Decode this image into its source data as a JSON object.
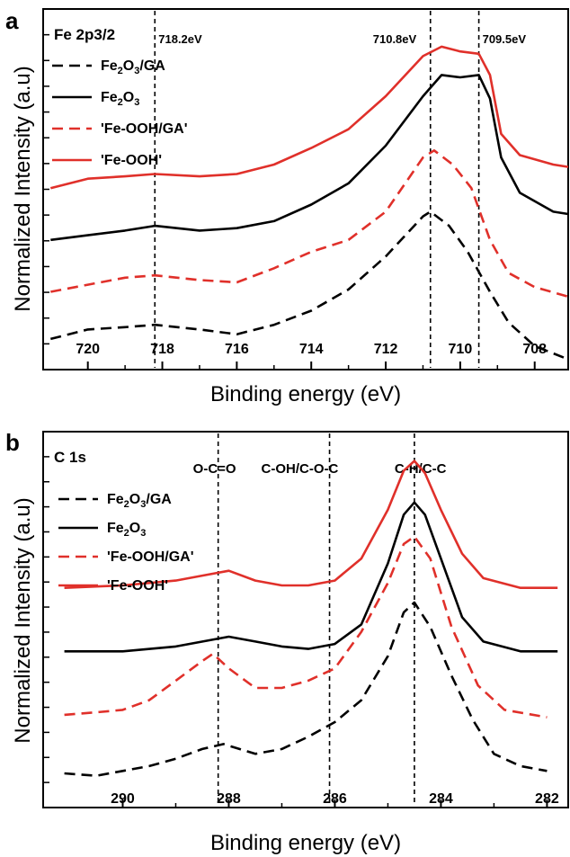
{
  "chart_data": [
    {
      "type": "line",
      "panel": "a",
      "title": "Fe 2p3/2",
      "xlabel": "Binding energy (eV)",
      "ylabel": "Normalized Intensity (a.u)",
      "xlim": [
        721.2,
        707.1
      ],
      "xticks": [
        720,
        718,
        716,
        714,
        712,
        710,
        708
      ],
      "x_reversed": true,
      "reference_lines": [
        {
          "x": 718.2,
          "label": "718.2eV"
        },
        {
          "x": 710.8,
          "label": "710.8eV"
        },
        {
          "x": 709.5,
          "label": "709.5eV"
        }
      ],
      "series": [
        {
          "name": "Fe2O3/GA",
          "color": "#000000",
          "dash": "dashed",
          "points": [
            [
              721.0,
              -0.02
            ],
            [
              720.0,
              0.02
            ],
            [
              719.0,
              0.03
            ],
            [
              718.2,
              0.04
            ],
            [
              717.0,
              0.02
            ],
            [
              716.0,
              0.0
            ],
            [
              715.0,
              0.04
            ],
            [
              714.0,
              0.1
            ],
            [
              713.0,
              0.19
            ],
            [
              712.0,
              0.33
            ],
            [
              711.0,
              0.5
            ],
            [
              710.8,
              0.52
            ],
            [
              710.3,
              0.46
            ],
            [
              709.8,
              0.35
            ],
            [
              709.2,
              0.18
            ],
            [
              708.7,
              0.05
            ],
            [
              708.0,
              -0.05
            ],
            [
              707.2,
              -0.1
            ]
          ]
        },
        {
          "name": "Fe2O3",
          "color": "#000000",
          "dash": "solid",
          "points": [
            [
              721.0,
              0.4
            ],
            [
              720.0,
              0.42
            ],
            [
              719.0,
              0.44
            ],
            [
              718.2,
              0.46
            ],
            [
              717.0,
              0.44
            ],
            [
              716.0,
              0.45
            ],
            [
              715.0,
              0.48
            ],
            [
              714.0,
              0.55
            ],
            [
              713.0,
              0.64
            ],
            [
              712.0,
              0.8
            ],
            [
              711.0,
              1.01
            ],
            [
              710.5,
              1.1
            ],
            [
              710.0,
              1.09
            ],
            [
              709.5,
              1.1
            ],
            [
              709.2,
              1.0
            ],
            [
              708.9,
              0.75
            ],
            [
              708.4,
              0.6
            ],
            [
              707.5,
              0.52
            ],
            [
              707.1,
              0.51
            ]
          ]
        },
        {
          "name": "'Fe-OOH/GA'",
          "color": "#e0302a",
          "dash": "dashed",
          "points": [
            [
              721.0,
              0.18
            ],
            [
              720.0,
              0.21
            ],
            [
              719.0,
              0.24
            ],
            [
              718.2,
              0.25
            ],
            [
              717.0,
              0.23
            ],
            [
              716.0,
              0.22
            ],
            [
              715.0,
              0.28
            ],
            [
              714.0,
              0.35
            ],
            [
              713.0,
              0.4
            ],
            [
              712.0,
              0.52
            ],
            [
              711.0,
              0.75
            ],
            [
              710.7,
              0.78
            ],
            [
              710.2,
              0.72
            ],
            [
              709.7,
              0.62
            ],
            [
              709.2,
              0.4
            ],
            [
              708.7,
              0.26
            ],
            [
              708.0,
              0.2
            ],
            [
              707.1,
              0.16
            ]
          ]
        },
        {
          "name": "'Fe-OOH'",
          "color": "#e0302a",
          "dash": "solid",
          "points": [
            [
              721.0,
              0.62
            ],
            [
              720.0,
              0.66
            ],
            [
              719.0,
              0.67
            ],
            [
              718.2,
              0.68
            ],
            [
              717.0,
              0.67
            ],
            [
              716.0,
              0.68
            ],
            [
              715.0,
              0.72
            ],
            [
              714.0,
              0.79
            ],
            [
              713.0,
              0.87
            ],
            [
              712.0,
              1.01
            ],
            [
              711.0,
              1.18
            ],
            [
              710.5,
              1.22
            ],
            [
              710.0,
              1.2
            ],
            [
              709.5,
              1.19
            ],
            [
              709.2,
              1.1
            ],
            [
              708.9,
              0.85
            ],
            [
              708.4,
              0.76
            ],
            [
              707.5,
              0.72
            ],
            [
              707.1,
              0.71
            ]
          ]
        }
      ],
      "legend": [
        {
          "text": "Fe2O3/GA",
          "color": "#000000",
          "dash": "dashed"
        },
        {
          "text": "Fe2O3",
          "color": "#000000",
          "dash": "solid"
        },
        {
          "text": "'Fe-OOH/GA'",
          "color": "#e0302a",
          "dash": "dashed"
        },
        {
          "text": "'Fe-OOH'",
          "color": "#e0302a",
          "dash": "solid"
        }
      ]
    },
    {
      "type": "line",
      "panel": "b",
      "title": "C 1s",
      "xlabel": "Binding energy (eV)",
      "ylabel": "Normalized Intensity (a.u)",
      "xlim": [
        291.5,
        281.6
      ],
      "xticks": [
        290,
        288,
        286,
        284,
        282
      ],
      "x_reversed": true,
      "reference_lines": [
        {
          "x": 288.2,
          "label": "O-C=O"
        },
        {
          "x": 286.1,
          "label": "C-OH/C-O-C"
        },
        {
          "x": 284.5,
          "label": "C-H/C-C"
        }
      ],
      "series": [
        {
          "name": "Fe2O3/GA",
          "color": "#000000",
          "dash": "dashed",
          "points": [
            [
              291.1,
              0.02
            ],
            [
              290.5,
              0.01
            ],
            [
              290.0,
              0.03
            ],
            [
              289.5,
              0.05
            ],
            [
              289.0,
              0.08
            ],
            [
              288.5,
              0.12
            ],
            [
              288.1,
              0.14
            ],
            [
              287.5,
              0.1
            ],
            [
              287.0,
              0.12
            ],
            [
              286.5,
              0.17
            ],
            [
              286.0,
              0.23
            ],
            [
              285.5,
              0.32
            ],
            [
              285.0,
              0.5
            ],
            [
              284.7,
              0.68
            ],
            [
              284.5,
              0.72
            ],
            [
              284.2,
              0.62
            ],
            [
              283.8,
              0.42
            ],
            [
              283.4,
              0.24
            ],
            [
              283.0,
              0.1
            ],
            [
              282.5,
              0.05
            ],
            [
              282.0,
              0.03
            ]
          ]
        },
        {
          "name": "Fe2O3",
          "color": "#000000",
          "dash": "solid",
          "points": [
            [
              291.1,
              0.52
            ],
            [
              290.0,
              0.52
            ],
            [
              289.0,
              0.54
            ],
            [
              288.0,
              0.58
            ],
            [
              287.5,
              0.56
            ],
            [
              287.0,
              0.54
            ],
            [
              286.5,
              0.53
            ],
            [
              286.0,
              0.55
            ],
            [
              285.5,
              0.63
            ],
            [
              285.0,
              0.88
            ],
            [
              284.7,
              1.08
            ],
            [
              284.5,
              1.13
            ],
            [
              284.3,
              1.08
            ],
            [
              284.0,
              0.9
            ],
            [
              283.6,
              0.66
            ],
            [
              283.2,
              0.56
            ],
            [
              282.5,
              0.52
            ],
            [
              281.8,
              0.52
            ]
          ]
        },
        {
          "name": "'Fe-OOH/GA'",
          "color": "#e0302a",
          "dash": "dashed",
          "points": [
            [
              291.1,
              0.26
            ],
            [
              290.5,
              0.27
            ],
            [
              290.0,
              0.28
            ],
            [
              289.5,
              0.32
            ],
            [
              289.0,
              0.4
            ],
            [
              288.5,
              0.48
            ],
            [
              288.3,
              0.51
            ],
            [
              288.0,
              0.45
            ],
            [
              287.5,
              0.37
            ],
            [
              287.0,
              0.37
            ],
            [
              286.5,
              0.4
            ],
            [
              286.0,
              0.45
            ],
            [
              285.5,
              0.6
            ],
            [
              285.0,
              0.8
            ],
            [
              284.7,
              0.96
            ],
            [
              284.5,
              0.99
            ],
            [
              284.2,
              0.9
            ],
            [
              283.8,
              0.62
            ],
            [
              283.3,
              0.38
            ],
            [
              282.8,
              0.28
            ],
            [
              282.0,
              0.25
            ]
          ]
        },
        {
          "name": "'Fe-OOH'",
          "color": "#e0302a",
          "dash": "solid",
          "points": [
            [
              291.1,
              0.78
            ],
            [
              290.0,
              0.79
            ],
            [
              289.0,
              0.81
            ],
            [
              288.5,
              0.83
            ],
            [
              288.0,
              0.85
            ],
            [
              287.5,
              0.81
            ],
            [
              287.0,
              0.79
            ],
            [
              286.5,
              0.79
            ],
            [
              286.0,
              0.81
            ],
            [
              285.5,
              0.9
            ],
            [
              285.0,
              1.1
            ],
            [
              284.7,
              1.26
            ],
            [
              284.5,
              1.3
            ],
            [
              284.3,
              1.25
            ],
            [
              284.0,
              1.1
            ],
            [
              283.6,
              0.92
            ],
            [
              283.2,
              0.82
            ],
            [
              282.5,
              0.78
            ],
            [
              281.8,
              0.78
            ]
          ]
        }
      ],
      "legend": [
        {
          "text": "Fe2O3/GA",
          "color": "#000000",
          "dash": "dashed"
        },
        {
          "text": "Fe2O3",
          "color": "#000000",
          "dash": "solid"
        },
        {
          "text": "'Fe-OOH/GA'",
          "color": "#e0302a",
          "dash": "dashed"
        },
        {
          "text": "'Fe-OOH'",
          "color": "#e0302a",
          "dash": "solid"
        }
      ]
    }
  ]
}
